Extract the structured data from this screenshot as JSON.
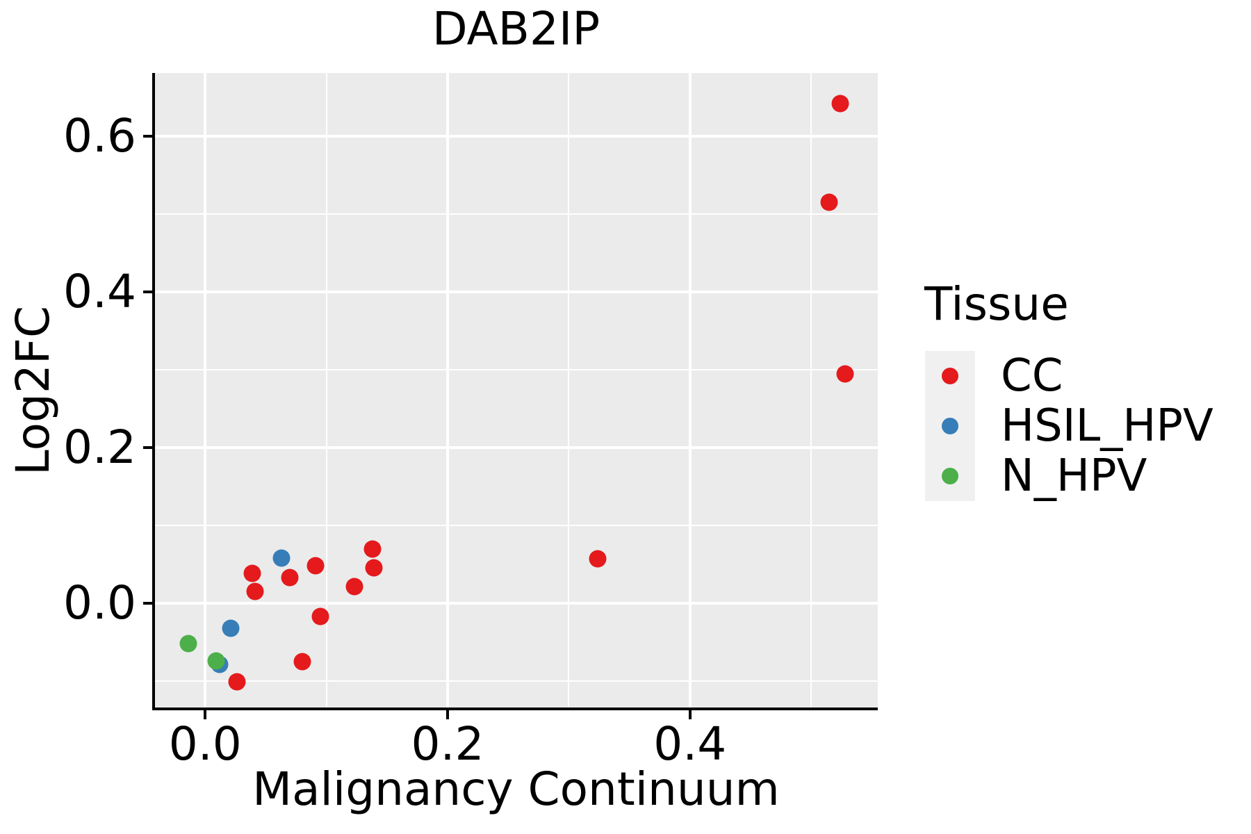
{
  "figure": {
    "title": "DAB2IP",
    "colors": {
      "page_bg": "#FFFFFF",
      "panel_bg": "#EBEBEB",
      "grid": "#FFFFFF",
      "axis_line": "#000000",
      "text": "#000000",
      "legend_key_bg": "#F0F0F0"
    }
  },
  "chart_data": {
    "type": "scatter",
    "title": "DAB2IP",
    "xlabel": "Malignancy Continuum",
    "ylabel": "Log2FC",
    "legend_title": "Tissue",
    "legend_position": "right",
    "grid": "white major+minor gridlines on gray panel",
    "xlim": [
      -0.042,
      0.555
    ],
    "ylim": [
      -0.136,
      0.681
    ],
    "x_ticks": [
      {
        "v": 0.0,
        "label": "0.0"
      },
      {
        "v": 0.2,
        "label": "0.2"
      },
      {
        "v": 0.4,
        "label": "0.4"
      }
    ],
    "y_ticks": [
      {
        "v": 0.0,
        "label": "0.0"
      },
      {
        "v": 0.2,
        "label": "0.2"
      },
      {
        "v": 0.4,
        "label": "0.4"
      },
      {
        "v": 0.6,
        "label": "0.6"
      }
    ],
    "x_minor_ticks": [
      0.1,
      0.3,
      0.5
    ],
    "y_minor_ticks": [
      -0.1,
      0.1,
      0.3,
      0.5
    ],
    "series": [
      {
        "name": "CC",
        "color": "#E41A1C",
        "points": [
          [
            0.524,
            0.642
          ],
          [
            0.515,
            0.515
          ],
          [
            0.528,
            0.294
          ],
          [
            0.324,
            0.057
          ],
          [
            0.138,
            0.069
          ],
          [
            0.139,
            0.045
          ],
          [
            0.123,
            0.021
          ],
          [
            0.091,
            0.048
          ],
          [
            0.095,
            -0.017
          ],
          [
            0.08,
            -0.075
          ],
          [
            0.07,
            0.033
          ],
          [
            0.041,
            0.015
          ],
          [
            0.039,
            0.038
          ],
          [
            0.026,
            -0.101
          ]
        ]
      },
      {
        "name": "HSIL_HPV",
        "color": "#377EB8",
        "points": [
          [
            0.063,
            0.058
          ],
          [
            0.021,
            -0.032
          ],
          [
            0.012,
            -0.079
          ]
        ]
      },
      {
        "name": "N_HPV",
        "color": "#4DAF4A",
        "points": [
          [
            -0.014,
            -0.052
          ],
          [
            0.009,
            -0.074
          ]
        ]
      }
    ]
  }
}
